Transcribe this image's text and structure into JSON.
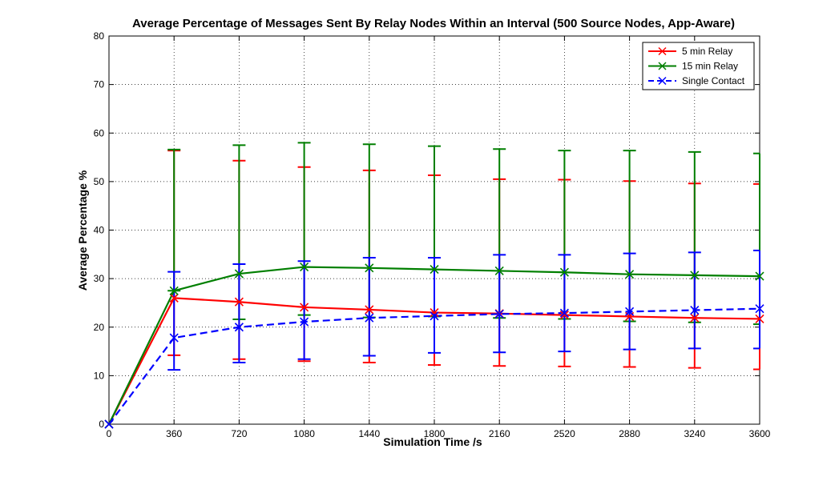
{
  "chart_data": {
    "type": "line",
    "title": "Average Percentage of Messages Sent By Relay Nodes Within an Interval (500 Source Nodes, App-Aware)",
    "xlabel": "Simulation Time /s",
    "ylabel": "Average Percentage %",
    "xlim": [
      0,
      3600
    ],
    "ylim": [
      0,
      80
    ],
    "xticks": [
      0,
      360,
      720,
      1080,
      1440,
      1800,
      2160,
      2520,
      2880,
      3240,
      3600
    ],
    "yticks": [
      0,
      10,
      20,
      30,
      40,
      50,
      60,
      70,
      80
    ],
    "grid": true,
    "legend_position": "top-right",
    "x": [
      0,
      360,
      720,
      1080,
      1440,
      1800,
      2160,
      2520,
      2880,
      3240,
      3600
    ],
    "series": [
      {
        "name": "5 min Relay",
        "color": "#ff0000",
        "line_style": "solid",
        "marker": "x",
        "values": [
          0,
          26,
          25.2,
          24.1,
          23.6,
          23.0,
          22.8,
          22.5,
          22.2,
          21.9,
          21.7
        ],
        "err_low": [
          0,
          14.2,
          13.4,
          13.0,
          12.7,
          12.2,
          12.0,
          11.9,
          11.8,
          11.6,
          11.3
        ],
        "err_high": [
          0,
          56.4,
          54.3,
          53.0,
          52.3,
          51.3,
          50.5,
          50.4,
          50.1,
          49.6,
          49.5
        ]
      },
      {
        "name": "15 min Relay",
        "color": "#007f00",
        "line_style": "solid",
        "marker": "x",
        "values": [
          0,
          27.5,
          31.0,
          32.4,
          32.2,
          31.9,
          31.6,
          31.3,
          30.9,
          30.7,
          30.5
        ],
        "err_low": [
          0,
          27.5,
          21.6,
          22.5,
          22.0,
          22.2,
          21.9,
          21.7,
          21.2,
          21.0,
          20.6
        ],
        "err_high": [
          0,
          56.6,
          57.5,
          58.0,
          57.7,
          57.3,
          56.7,
          56.4,
          56.4,
          56.1,
          55.8
        ]
      },
      {
        "name": "Single Contact",
        "color": "#0000ff",
        "line_style": "dashed",
        "marker": "x",
        "values": [
          0,
          17.8,
          20.0,
          21.1,
          21.9,
          22.3,
          22.7,
          22.9,
          23.2,
          23.5,
          23.8
        ],
        "err_low": [
          0,
          11.2,
          12.7,
          13.4,
          14.1,
          14.7,
          14.8,
          15.0,
          15.4,
          15.6,
          15.6
        ],
        "err_high": [
          0,
          31.4,
          33.0,
          33.6,
          34.3,
          34.3,
          34.9,
          34.9,
          35.2,
          35.4,
          35.8
        ]
      }
    ]
  }
}
